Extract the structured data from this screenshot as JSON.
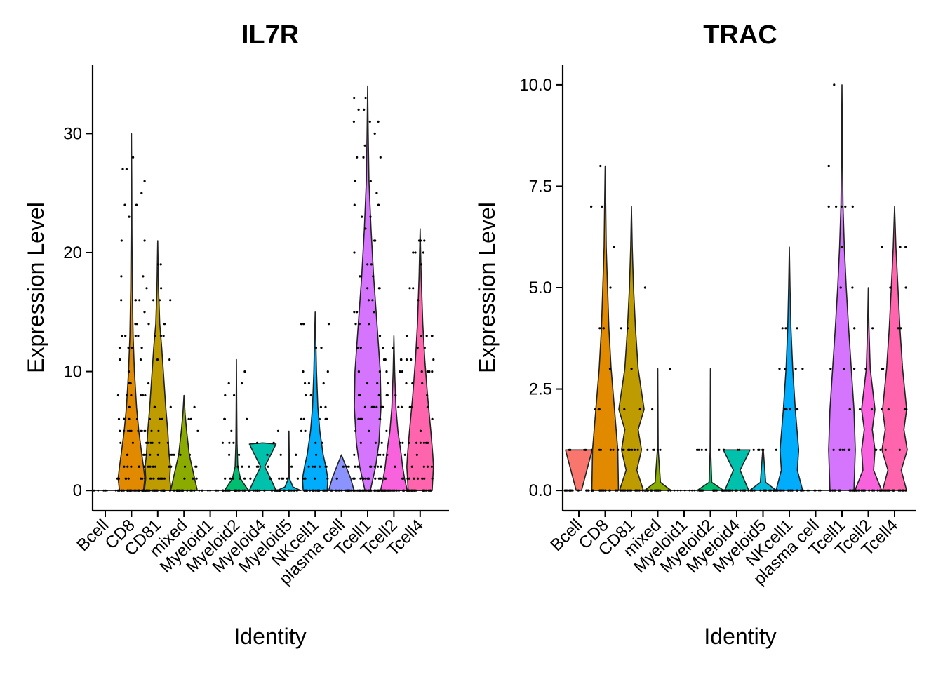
{
  "chart_data": [
    {
      "type": "violin",
      "title": "IL7R",
      "xlabel": "Identity",
      "ylabel": "Expression Level",
      "ylim": [
        -1.7,
        35.8
      ],
      "yticks": [
        0,
        10,
        20,
        30
      ],
      "ytick_labels": [
        "0",
        "10",
        "20",
        "30"
      ],
      "categories": [
        "Bcell",
        "CD8",
        "CD81",
        "mixed",
        "Myeloid1",
        "Myeloid2",
        "Myeloid4",
        "Myeloid5",
        "NKcell1",
        "plasma cell",
        "Tcell1",
        "Tcell2",
        "Tcell4"
      ],
      "colors": [
        "#F8766D",
        "#E18A00",
        "#BE9C00",
        "#8CAB00",
        "#24B700",
        "#00BE70",
        "#00C1AB",
        "#00BBDA",
        "#00ACFC",
        "#8B93FF",
        "#D575FE",
        "#F962DD",
        "#FF65AC"
      ],
      "violins": [
        {
          "name": "Bcell",
          "max": 0,
          "profile": []
        },
        {
          "name": "CD8",
          "max": 30,
          "profile": [
            [
              0,
              0.9
            ],
            [
              1,
              1
            ],
            [
              2,
              0.9
            ],
            [
              3,
              0.78
            ],
            [
              5,
              0.55
            ],
            [
              7,
              0.38
            ],
            [
              10,
              0.22
            ],
            [
              13,
              0.12
            ],
            [
              17,
              0.06
            ],
            [
              22,
              0.03
            ],
            [
              26,
              0.02
            ],
            [
              30,
              0
            ]
          ]
        },
        {
          "name": "CD81",
          "max": 21,
          "profile": [
            [
              0,
              1
            ],
            [
              1,
              0.9
            ],
            [
              2,
              0.95
            ],
            [
              3,
              0.85
            ],
            [
              5,
              0.75
            ],
            [
              7,
              0.6
            ],
            [
              10,
              0.42
            ],
            [
              12,
              0.3
            ],
            [
              14,
              0.15
            ],
            [
              17,
              0.06
            ],
            [
              21,
              0
            ]
          ]
        },
        {
          "name": "mixed",
          "max": 8,
          "profile": [
            [
              0,
              1
            ],
            [
              1,
              0.8
            ],
            [
              2,
              0.6
            ],
            [
              3,
              0.4
            ],
            [
              5,
              0.2
            ],
            [
              6.5,
              0.08
            ],
            [
              8,
              0
            ]
          ]
        },
        {
          "name": "Myeloid1",
          "max": 0,
          "profile": []
        },
        {
          "name": "Myeloid2",
          "max": 11,
          "profile": [
            [
              0,
              0.9
            ],
            [
              0.5,
              0.6
            ],
            [
              1,
              0.3
            ],
            [
              2,
              0.1
            ],
            [
              4,
              0.04
            ],
            [
              7,
              0.02
            ],
            [
              11,
              0
            ]
          ]
        },
        {
          "name": "Myeloid4",
          "max": 4,
          "profile": [
            [
              0,
              1
            ],
            [
              1,
              0.6
            ],
            [
              2,
              0.15
            ],
            [
              3,
              0.6
            ],
            [
              3.9,
              1
            ],
            [
              4,
              0
            ]
          ]
        },
        {
          "name": "Myeloid5",
          "max": 5,
          "profile": [
            [
              0,
              0.9
            ],
            [
              0.3,
              0.3
            ],
            [
              1,
              0.04
            ],
            [
              5,
              0
            ]
          ]
        },
        {
          "name": "NKcell1",
          "max": 15,
          "profile": [
            [
              0,
              0.9
            ],
            [
              1,
              0.95
            ],
            [
              2,
              0.8
            ],
            [
              3,
              0.6
            ],
            [
              5,
              0.35
            ],
            [
              7,
              0.2
            ],
            [
              10,
              0.1
            ],
            [
              15,
              0
            ]
          ]
        },
        {
          "name": "plasma cell",
          "max": 3,
          "profile": [
            [
              0,
              0.95
            ],
            [
              1,
              0.7
            ],
            [
              2,
              0.35
            ],
            [
              3,
              0
            ]
          ]
        },
        {
          "name": "Tcell1",
          "max": 34,
          "profile": [
            [
              0,
              0.2
            ],
            [
              2,
              0.6
            ],
            [
              4,
              0.85
            ],
            [
              7,
              1
            ],
            [
              10,
              0.95
            ],
            [
              14,
              0.7
            ],
            [
              18,
              0.45
            ],
            [
              22,
              0.25
            ],
            [
              26,
              0.1
            ],
            [
              30,
              0.04
            ],
            [
              34,
              0
            ]
          ]
        },
        {
          "name": "Tcell2",
          "max": 13,
          "profile": [
            [
              0,
              1
            ],
            [
              1,
              0.8
            ],
            [
              2,
              0.65
            ],
            [
              3,
              0.55
            ],
            [
              5,
              0.3
            ],
            [
              7,
              0.15
            ],
            [
              10,
              0.06
            ],
            [
              13,
              0
            ]
          ]
        },
        {
          "name": "Tcell4",
          "max": 22,
          "profile": [
            [
              0,
              0.9
            ],
            [
              1,
              0.95
            ],
            [
              2,
              1
            ],
            [
              3,
              0.95
            ],
            [
              5,
              0.8
            ],
            [
              8,
              0.55
            ],
            [
              11,
              0.35
            ],
            [
              14,
              0.2
            ],
            [
              18,
              0.08
            ],
            [
              22,
              0
            ]
          ]
        }
      ]
    },
    {
      "type": "violin",
      "title": "TRAC",
      "xlabel": "Identity",
      "ylabel": "Expression Level",
      "ylim": [
        -0.5,
        10.5
      ],
      "yticks": [
        0,
        2.5,
        5,
        7.5,
        10
      ],
      "ytick_labels": [
        "0.0",
        "2.5",
        "5.0",
        "7.5",
        "10.0"
      ],
      "categories": [
        "Bcell",
        "CD8",
        "CD81",
        "mixed",
        "Myeloid1",
        "Myeloid2",
        "Myeloid4",
        "Myeloid5",
        "NKcell1",
        "plasma cell",
        "Tcell1",
        "Tcell2",
        "Tcell4"
      ],
      "colors": [
        "#F8766D",
        "#E18A00",
        "#BE9C00",
        "#8CAB00",
        "#24B700",
        "#00BE70",
        "#00C1AB",
        "#00BBDA",
        "#00ACFC",
        "#8B93FF",
        "#D575FE",
        "#F962DD",
        "#FF65AC"
      ],
      "violins": [
        {
          "name": "Bcell",
          "max": 1,
          "profile": [
            [
              0,
              0.2
            ],
            [
              0.5,
              0.6
            ],
            [
              1,
              1
            ],
            [
              1,
              0
            ]
          ]
        },
        {
          "name": "CD8",
          "max": 8,
          "profile": [
            [
              0,
              1
            ],
            [
              1,
              0.95
            ],
            [
              2,
              0.7
            ],
            [
              3,
              0.45
            ],
            [
              4,
              0.28
            ],
            [
              5,
              0.18
            ],
            [
              6,
              0.08
            ],
            [
              7,
              0.04
            ],
            [
              8,
              0
            ]
          ]
        },
        {
          "name": "CD81",
          "max": 7,
          "profile": [
            [
              0,
              0.9
            ],
            [
              0.5,
              0.4
            ],
            [
              1,
              0.75
            ],
            [
              1.5,
              0.5
            ],
            [
              2,
              0.95
            ],
            [
              3,
              0.5
            ],
            [
              4,
              0.3
            ],
            [
              5,
              0.15
            ],
            [
              6,
              0.06
            ],
            [
              7,
              0
            ]
          ]
        },
        {
          "name": "mixed",
          "max": 3,
          "profile": [
            [
              0,
              1
            ],
            [
              0.2,
              0.2
            ],
            [
              1,
              0.03
            ],
            [
              3,
              0
            ]
          ]
        },
        {
          "name": "Myeloid1",
          "max": 0,
          "profile": []
        },
        {
          "name": "Myeloid2",
          "max": 3,
          "profile": [
            [
              0,
              1
            ],
            [
              0.2,
              0.1
            ],
            [
              1,
              0.02
            ],
            [
              3,
              0
            ]
          ]
        },
        {
          "name": "Myeloid4",
          "max": 1,
          "profile": [
            [
              0,
              0.9
            ],
            [
              0.5,
              0.25
            ],
            [
              1,
              1
            ],
            [
              1,
              0
            ]
          ]
        },
        {
          "name": "Myeloid5",
          "max": 1,
          "profile": [
            [
              0,
              1
            ],
            [
              0.2,
              0.2
            ],
            [
              1,
              0.02
            ],
            [
              1,
              0
            ]
          ]
        },
        {
          "name": "NKcell1",
          "max": 6,
          "profile": [
            [
              0,
              1
            ],
            [
              0.5,
              0.6
            ],
            [
              1,
              0.7
            ],
            [
              2,
              0.45
            ],
            [
              3,
              0.25
            ],
            [
              4,
              0.12
            ],
            [
              5,
              0.05
            ],
            [
              6,
              0
            ]
          ]
        },
        {
          "name": "plasma cell",
          "max": 0,
          "profile": []
        },
        {
          "name": "Tcell1",
          "max": 10,
          "profile": [
            [
              0,
              0.9
            ],
            [
              1,
              1
            ],
            [
              2,
              0.9
            ],
            [
              3,
              0.7
            ],
            [
              4,
              0.5
            ],
            [
              5,
              0.32
            ],
            [
              6,
              0.18
            ],
            [
              7,
              0.08
            ],
            [
              8,
              0.04
            ],
            [
              10,
              0
            ]
          ]
        },
        {
          "name": "Tcell2",
          "max": 5,
          "profile": [
            [
              0,
              1
            ],
            [
              0.5,
              0.4
            ],
            [
              1,
              0.5
            ],
            [
              1.5,
              0.3
            ],
            [
              2,
              0.5
            ],
            [
              3,
              0.15
            ],
            [
              4,
              0.05
            ],
            [
              5,
              0
            ]
          ]
        },
        {
          "name": "Tcell4",
          "max": 7,
          "profile": [
            [
              0,
              0.9
            ],
            [
              0.5,
              0.5
            ],
            [
              1,
              0.95
            ],
            [
              1.5,
              0.7
            ],
            [
              2,
              0.9
            ],
            [
              3,
              0.6
            ],
            [
              4,
              0.4
            ],
            [
              5,
              0.25
            ],
            [
              6,
              0.1
            ],
            [
              7,
              0
            ]
          ]
        }
      ]
    }
  ]
}
